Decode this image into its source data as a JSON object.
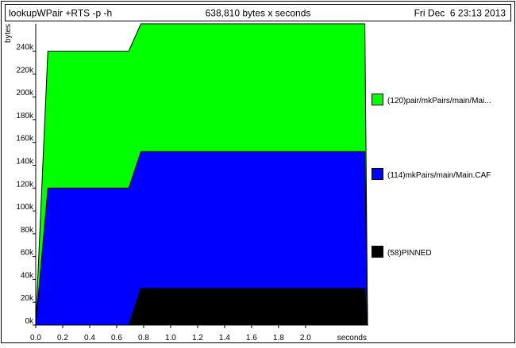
{
  "header": {
    "program": "lookupWPair +RTS -p -h",
    "total": "638,810 bytes x seconds",
    "date": "Fri Dec  6 23:13 2013"
  },
  "chart_data": {
    "type": "area",
    "stacked": true,
    "ylabel": "bytes",
    "xlabel": "seconds",
    "xlim": [
      0,
      2.466
    ],
    "ylim": [
      0,
      264000
    ],
    "x": [
      0.0,
      0.09,
      0.69,
      0.78,
      2.44,
      2.46
    ],
    "x_ticks": [
      {
        "v": 0.0,
        "label": "0.0"
      },
      {
        "v": 0.2,
        "label": "0.2"
      },
      {
        "v": 0.4,
        "label": "0.4"
      },
      {
        "v": 0.6,
        "label": "0.6"
      },
      {
        "v": 0.8,
        "label": "0.8"
      },
      {
        "v": 1.0,
        "label": "1.0"
      },
      {
        "v": 1.2,
        "label": "1.2"
      },
      {
        "v": 1.4,
        "label": "1.4"
      },
      {
        "v": 1.6,
        "label": "1.6"
      },
      {
        "v": 1.8,
        "label": "1.8"
      },
      {
        "v": 2.0,
        "label": "2.0"
      }
    ],
    "y_ticks": [
      {
        "v": 0,
        "label": "0k"
      },
      {
        "v": 20000,
        "label": "20k"
      },
      {
        "v": 40000,
        "label": "40k"
      },
      {
        "v": 60000,
        "label": "60k"
      },
      {
        "v": 80000,
        "label": "80k"
      },
      {
        "v": 100000,
        "label": "100k"
      },
      {
        "v": 120000,
        "label": "120k"
      },
      {
        "v": 140000,
        "label": "140k"
      },
      {
        "v": 160000,
        "label": "160k"
      },
      {
        "v": 180000,
        "label": "180k"
      },
      {
        "v": 200000,
        "label": "200k"
      },
      {
        "v": 220000,
        "label": "220k"
      },
      {
        "v": 240000,
        "label": "240k"
      }
    ],
    "series": [
      {
        "name": "(58)PINNED",
        "color": "#000000",
        "values": [
          0,
          0,
          0,
          32000,
          32000,
          0
        ]
      },
      {
        "name": "(114)mkPairs/main/Main.CAF",
        "color": "#0000ff",
        "values": [
          0,
          120000,
          120000,
          120000,
          120000,
          0
        ]
      },
      {
        "name": "(120)pair/mkPairs/main/Mai...",
        "color": "#00ff00",
        "values": [
          0,
          120000,
          120000,
          112000,
          112000,
          0
        ]
      }
    ],
    "legend_order": [
      2,
      1,
      0
    ],
    "legend_position": "right"
  }
}
